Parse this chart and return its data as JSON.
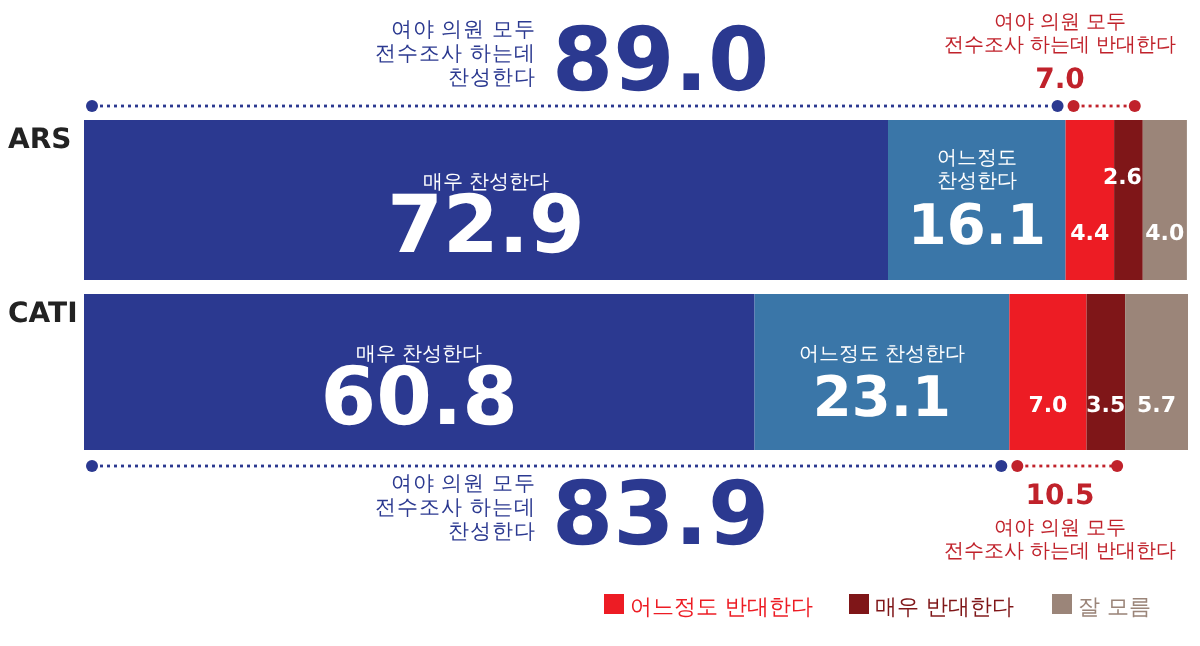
{
  "chart_data": {
    "type": "bar",
    "orientation": "horizontal",
    "stacked": true,
    "categories": [
      "ARS",
      "CATI"
    ],
    "series": [
      {
        "name": "매우 찬성한다",
        "color": "#2b3990",
        "values": [
          72.9,
          60.8
        ],
        "value_labels": [
          "72.9",
          "60.8"
        ]
      },
      {
        "name": "어느정도 찬성한다",
        "color": "#3a76a8",
        "values": [
          16.1,
          23.1
        ],
        "value_labels": [
          "16.1",
          "23.1"
        ]
      },
      {
        "name": "어느정도 반대한다",
        "color": "#ed1c24",
        "values": [
          4.4,
          7.0
        ],
        "value_labels": [
          "4.4",
          "7.0"
        ]
      },
      {
        "name": "매우 반대한다",
        "color": "#7f1618",
        "values": [
          2.6,
          3.5
        ],
        "value_labels": [
          "2.6",
          "3.5"
        ]
      },
      {
        "name": "잘 모름",
        "color": "#9b8579",
        "values": [
          4.0,
          5.7
        ],
        "value_labels": [
          "4.0",
          "5.7"
        ]
      }
    ],
    "legend": "bottom right",
    "annotations": [
      "여야 의원 모두\n전수조사 하는데\n찬성한다",
      "89.0",
      "여야 의원 모두\n전수조사 하는데 반대한다",
      "7.0",
      "여야 의원 모두\n전수조사 하는데\n찬성한다",
      "83.9",
      "여야 의원 모두\n전수조사 하는데 반대한다",
      "10.5"
    ]
  }
}
